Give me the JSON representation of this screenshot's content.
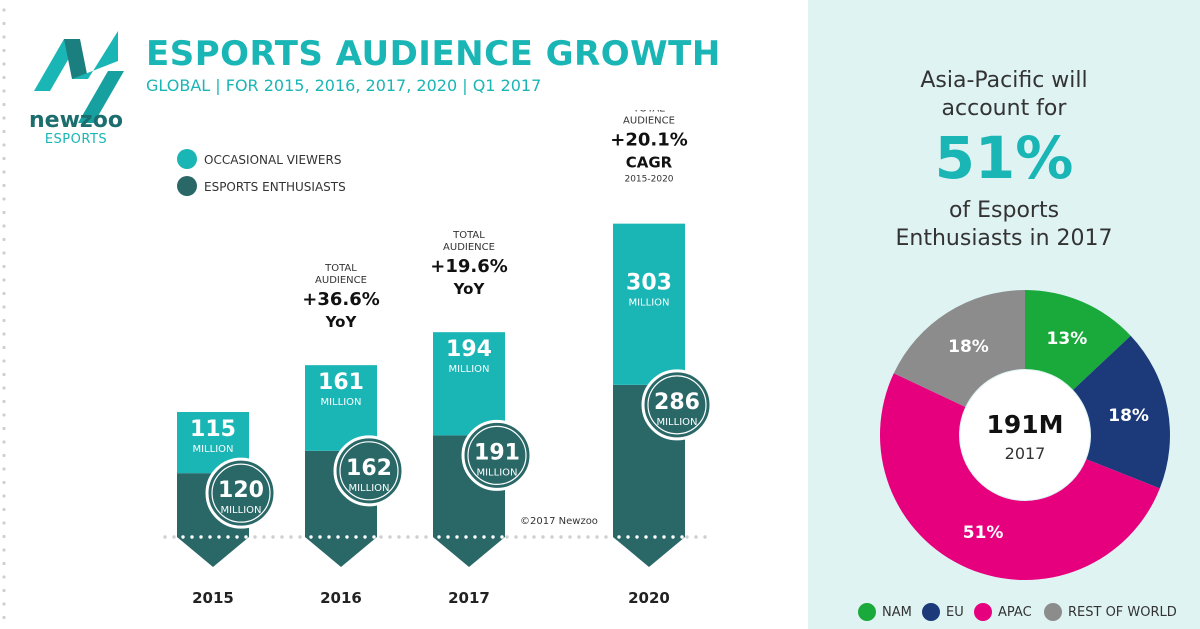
{
  "header": {
    "title": "ESPORTS AUDIENCE GROWTH",
    "subtitle": "GLOBAL | FOR 2015, 2016, 2017, 2020 | Q1 2017"
  },
  "logo": {
    "word": "newzoo",
    "sub": "ESPORTS"
  },
  "copyright": "©2017 Newzoo",
  "colors": {
    "teal": "#1ab5b5",
    "dark_teal": "#2a6767",
    "green": "#1aaa3c",
    "navy": "#1c3a7a",
    "magenta": "#e6007e",
    "gray": "#8c8c8c"
  },
  "chart_data": [
    {
      "type": "bar",
      "stacked": true,
      "categories": [
        "2015",
        "2016",
        "2017",
        "2020"
      ],
      "series": [
        {
          "name": "OCCASIONAL VIEWERS",
          "values": [
            115,
            161,
            194,
            303
          ]
        },
        {
          "name": "ESPORTS ENTHUSIASTS",
          "values": [
            120,
            162,
            191,
            286
          ]
        }
      ],
      "unit_label": "MILLION",
      "legend": "top-left",
      "grid": false,
      "annotations": [
        {
          "category": "2016",
          "small": "TOTAL\nAUDIENCE",
          "big": "+36.6%",
          "sub": "YoY",
          "note": ""
        },
        {
          "category": "2017",
          "small": "TOTAL\nAUDIENCE",
          "big": "+19.6%",
          "sub": "YoY",
          "note": ""
        },
        {
          "category": "2020",
          "small": "TOTAL\nAUDIENCE",
          "big": "+20.1%",
          "sub": "CAGR",
          "note": "2015-2020"
        }
      ]
    },
    {
      "type": "pie",
      "donut": true,
      "center_value": "191M",
      "center_label": "2017",
      "headline": [
        "Asia-Pacific will",
        "account for"
      ],
      "big": "51%",
      "headline2": [
        "of Esports",
        "Enthusiasts in 2017"
      ],
      "slices": [
        {
          "name": "NAM",
          "value": 13,
          "label": "13%",
          "color": "#1aaa3c"
        },
        {
          "name": "EU",
          "value": 18,
          "label": "18%",
          "color": "#1c3a7a"
        },
        {
          "name": "APAC",
          "value": 51,
          "label": "51%",
          "color": "#e6007e"
        },
        {
          "name": "REST OF WORLD",
          "value": 18,
          "label": "18%",
          "color": "#8c8c8c"
        }
      ],
      "legend": "bottom"
    }
  ]
}
